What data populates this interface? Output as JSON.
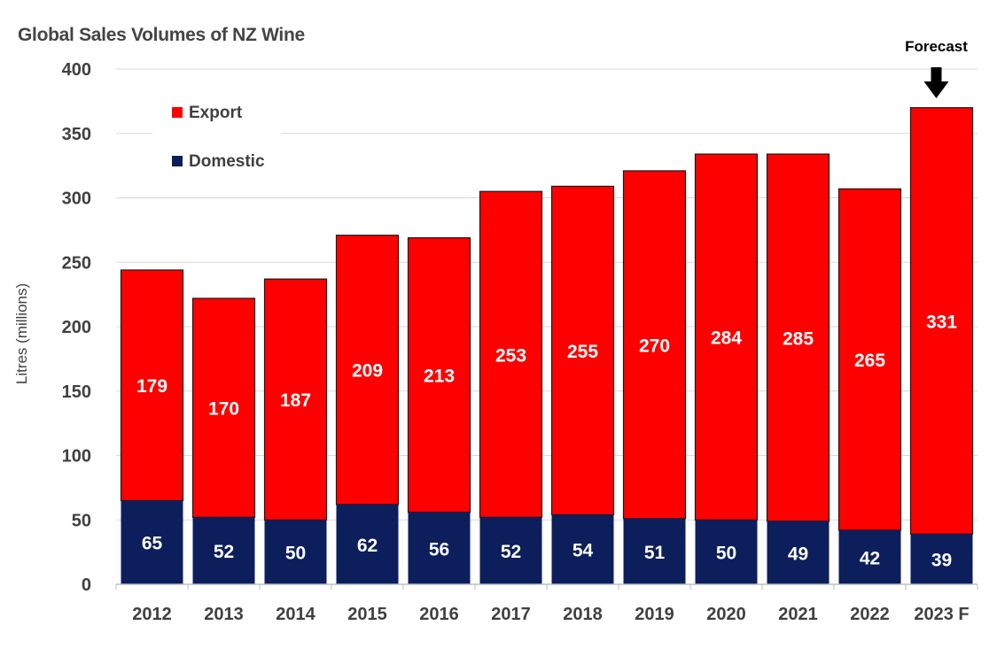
{
  "chart_data": {
    "type": "bar",
    "stacked": true,
    "title": "Global Sales Volumes of NZ Wine",
    "ylabel": "Litres (millions)",
    "xlabel": "",
    "ylim": [
      0,
      400
    ],
    "yticks": [
      0,
      50,
      100,
      150,
      200,
      250,
      300,
      350,
      400
    ],
    "grid": true,
    "legend_position": "top-left",
    "categories": [
      "2012",
      "2013",
      "2014",
      "2015",
      "2016",
      "2017",
      "2018",
      "2019",
      "2020",
      "2021",
      "2022",
      "2023 F"
    ],
    "series": [
      {
        "name": "Domestic",
        "color": "#0c1f5c",
        "values": [
          65,
          52,
          50,
          62,
          56,
          52,
          54,
          51,
          50,
          49,
          42,
          39
        ]
      },
      {
        "name": "Export",
        "color": "#ff0000",
        "values": [
          179,
          170,
          187,
          209,
          213,
          253,
          255,
          270,
          284,
          285,
          265,
          331
        ]
      }
    ],
    "annotations": [
      {
        "text": "Forecast",
        "category": "2023 F",
        "arrow": "down"
      }
    ]
  }
}
